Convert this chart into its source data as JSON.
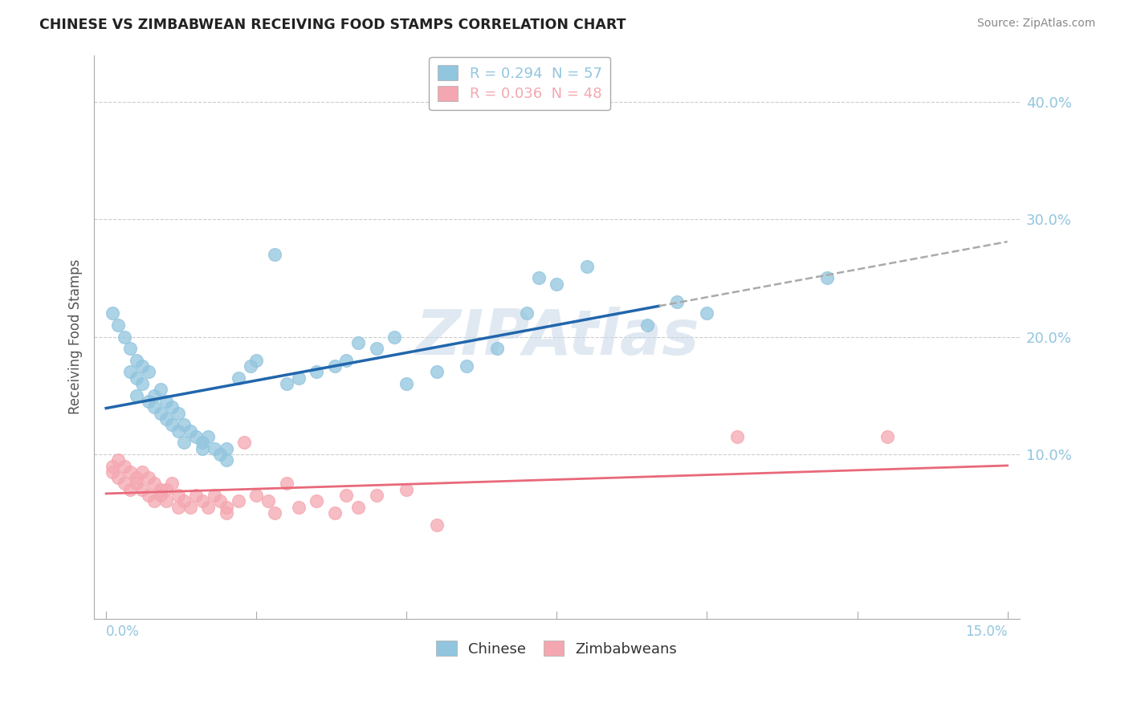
{
  "title": "CHINESE VS ZIMBABWEAN RECEIVING FOOD STAMPS CORRELATION CHART",
  "source": "Source: ZipAtlas.com",
  "ylabel": "Receiving Food Stamps",
  "right_yticks": [
    0.1,
    0.2,
    0.3,
    0.4
  ],
  "right_yticklabels": [
    "10.0%",
    "20.0%",
    "30.0%",
    "40.0%"
  ],
  "watermark": "ZIPAtlas",
  "chinese_color": "#92c5de",
  "zimbabwean_color": "#f4a7b0",
  "chinese_line_color": "#2166ac",
  "zimbabwean_line_color": "#e8697a",
  "chinese_R": 0.294,
  "chinese_N": 57,
  "zimbabwean_R": 0.036,
  "zimbabwean_N": 48,
  "chinese_points": [
    [
      0.001,
      0.22
    ],
    [
      0.002,
      0.21
    ],
    [
      0.003,
      0.2
    ],
    [
      0.004,
      0.19
    ],
    [
      0.004,
      0.17
    ],
    [
      0.005,
      0.18
    ],
    [
      0.005,
      0.165
    ],
    [
      0.005,
      0.15
    ],
    [
      0.006,
      0.175
    ],
    [
      0.006,
      0.16
    ],
    [
      0.007,
      0.17
    ],
    [
      0.007,
      0.145
    ],
    [
      0.008,
      0.15
    ],
    [
      0.008,
      0.14
    ],
    [
      0.009,
      0.155
    ],
    [
      0.009,
      0.135
    ],
    [
      0.01,
      0.145
    ],
    [
      0.01,
      0.13
    ],
    [
      0.011,
      0.14
    ],
    [
      0.011,
      0.125
    ],
    [
      0.012,
      0.135
    ],
    [
      0.012,
      0.12
    ],
    [
      0.013,
      0.125
    ],
    [
      0.013,
      0.11
    ],
    [
      0.014,
      0.12
    ],
    [
      0.015,
      0.115
    ],
    [
      0.016,
      0.11
    ],
    [
      0.016,
      0.105
    ],
    [
      0.017,
      0.115
    ],
    [
      0.018,
      0.105
    ],
    [
      0.019,
      0.1
    ],
    [
      0.02,
      0.105
    ],
    [
      0.02,
      0.095
    ],
    [
      0.022,
      0.165
    ],
    [
      0.024,
      0.175
    ],
    [
      0.025,
      0.18
    ],
    [
      0.028,
      0.27
    ],
    [
      0.03,
      0.16
    ],
    [
      0.032,
      0.165
    ],
    [
      0.035,
      0.17
    ],
    [
      0.038,
      0.175
    ],
    [
      0.04,
      0.18
    ],
    [
      0.042,
      0.195
    ],
    [
      0.045,
      0.19
    ],
    [
      0.048,
      0.2
    ],
    [
      0.05,
      0.16
    ],
    [
      0.055,
      0.17
    ],
    [
      0.06,
      0.175
    ],
    [
      0.065,
      0.19
    ],
    [
      0.07,
      0.22
    ],
    [
      0.072,
      0.25
    ],
    [
      0.075,
      0.245
    ],
    [
      0.08,
      0.26
    ],
    [
      0.09,
      0.21
    ],
    [
      0.095,
      0.23
    ],
    [
      0.1,
      0.22
    ],
    [
      0.12,
      0.25
    ]
  ],
  "zimbabwean_points": [
    [
      0.001,
      0.09
    ],
    [
      0.001,
      0.085
    ],
    [
      0.002,
      0.095
    ],
    [
      0.002,
      0.08
    ],
    [
      0.003,
      0.09
    ],
    [
      0.003,
      0.075
    ],
    [
      0.004,
      0.085
    ],
    [
      0.004,
      0.07
    ],
    [
      0.005,
      0.08
    ],
    [
      0.005,
      0.075
    ],
    [
      0.006,
      0.085
    ],
    [
      0.006,
      0.07
    ],
    [
      0.007,
      0.08
    ],
    [
      0.007,
      0.065
    ],
    [
      0.008,
      0.075
    ],
    [
      0.008,
      0.06
    ],
    [
      0.009,
      0.07
    ],
    [
      0.009,
      0.065
    ],
    [
      0.01,
      0.07
    ],
    [
      0.01,
      0.06
    ],
    [
      0.011,
      0.075
    ],
    [
      0.012,
      0.065
    ],
    [
      0.012,
      0.055
    ],
    [
      0.013,
      0.06
    ],
    [
      0.014,
      0.055
    ],
    [
      0.015,
      0.065
    ],
    [
      0.016,
      0.06
    ],
    [
      0.017,
      0.055
    ],
    [
      0.018,
      0.065
    ],
    [
      0.019,
      0.06
    ],
    [
      0.02,
      0.055
    ],
    [
      0.02,
      0.05
    ],
    [
      0.022,
      0.06
    ],
    [
      0.023,
      0.11
    ],
    [
      0.025,
      0.065
    ],
    [
      0.027,
      0.06
    ],
    [
      0.028,
      0.05
    ],
    [
      0.03,
      0.075
    ],
    [
      0.032,
      0.055
    ],
    [
      0.035,
      0.06
    ],
    [
      0.038,
      0.05
    ],
    [
      0.04,
      0.065
    ],
    [
      0.042,
      0.055
    ],
    [
      0.045,
      0.065
    ],
    [
      0.05,
      0.07
    ],
    [
      0.055,
      0.04
    ],
    [
      0.105,
      0.115
    ],
    [
      0.13,
      0.115
    ]
  ],
  "xlim": [
    -0.002,
    0.152
  ],
  "ylim": [
    -0.04,
    0.44
  ],
  "x_axis_min": 0.0,
  "x_axis_max": 0.15,
  "background_color": "#ffffff",
  "plot_background": "#ffffff",
  "grid_color": "#cccccc"
}
